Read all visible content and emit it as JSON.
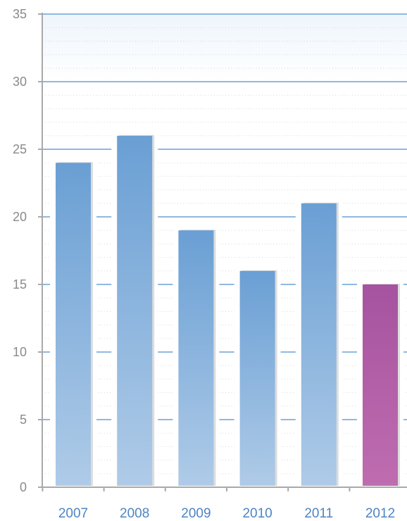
{
  "chart_data": {
    "type": "bar",
    "title": "",
    "xlabel": "",
    "ylabel": "",
    "categories": [
      "2007",
      "2008",
      "2009",
      "2010",
      "2011",
      "2012"
    ],
    "values": [
      24,
      26,
      19,
      16,
      21,
      15
    ],
    "ylim": [
      0,
      35
    ],
    "yticks": [
      0,
      5,
      10,
      15,
      20,
      25,
      30,
      35
    ],
    "ytick_labels": [
      "0",
      "5",
      "10",
      "15",
      "20",
      "25",
      "30",
      "35"
    ],
    "highlight_index": 5,
    "grid": true,
    "colors": {
      "bar_top": "#6a9fd4",
      "bar_bottom": "#afcbe8",
      "highlight_top": "#a653a0",
      "highlight_bottom": "#bf6db0",
      "gridline": "#8fb8e2",
      "axis": "#a9a9a9",
      "ytick_text": "#8a8a8a",
      "xtick_text": "#4d84c2"
    }
  }
}
